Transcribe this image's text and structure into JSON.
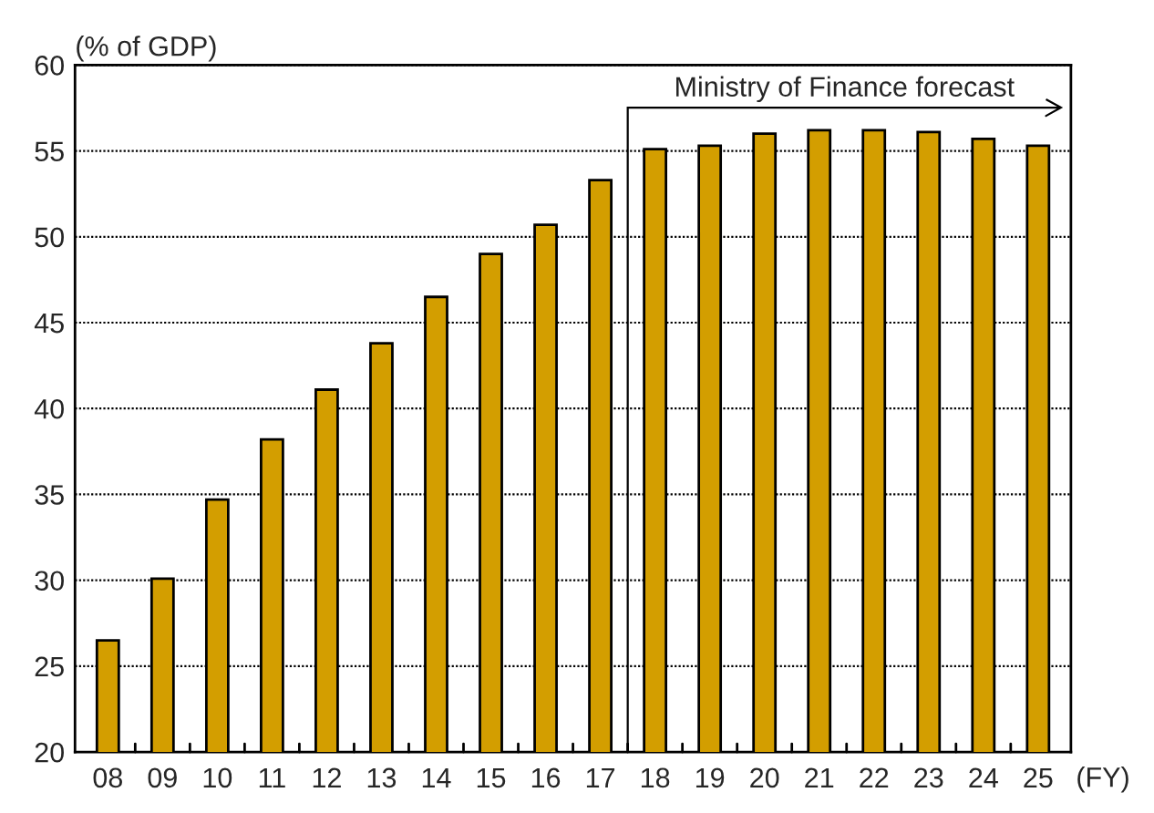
{
  "chart_data": {
    "type": "bar",
    "ylabel": "(% of GDP)",
    "xlabel": "(FY)",
    "categories": [
      "08",
      "09",
      "10",
      "11",
      "12",
      "13",
      "14",
      "15",
      "16",
      "17",
      "18",
      "19",
      "20",
      "21",
      "22",
      "23",
      "24",
      "25"
    ],
    "values": [
      26.5,
      30.1,
      34.7,
      38.2,
      41.1,
      43.8,
      46.5,
      49.0,
      50.7,
      53.3,
      55.1,
      55.3,
      56.0,
      56.2,
      56.2,
      56.1,
      55.7,
      55.3
    ],
    "color": "#d39e00",
    "ylim": [
      20,
      60
    ],
    "yticks": [
      20,
      25,
      30,
      35,
      40,
      45,
      50,
      55,
      60
    ],
    "grid": "y",
    "annotations": [
      "Ministry of Finance forecast"
    ]
  }
}
